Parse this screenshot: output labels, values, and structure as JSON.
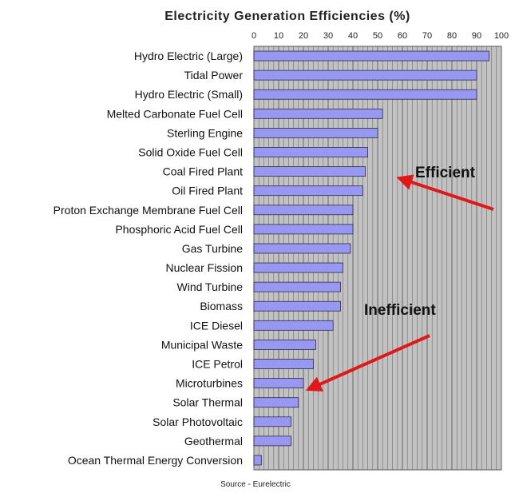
{
  "chart_data": {
    "type": "bar",
    "orientation": "horizontal",
    "title": "Electricity Generation Efficiencies (%)",
    "xlim": [
      0,
      100
    ],
    "xticks": [
      0,
      10,
      20,
      30,
      40,
      50,
      60,
      70,
      80,
      90,
      100
    ],
    "categories": [
      "Hydro Electric (Large)",
      "Tidal Power",
      "Hydro Electric (Small)",
      "Melted Carbonate Fuel Cell",
      "Sterling Engine",
      "Solid Oxide Fuel Cell",
      "Coal Fired Plant",
      "Oil Fired Plant",
      "Proton Exchange Membrane Fuel Cell",
      "Phosphoric Acid Fuel Cell",
      "Gas Turbine",
      "Nuclear Fission",
      "Wind Turbine",
      "Biomass",
      "ICE Diesel",
      "Municipal Waste",
      "ICE Petrol",
      "Microturbines",
      "Solar Thermal",
      "Solar Photovoltaic",
      "Geothermal",
      "Ocean Thermal Energy Conversion"
    ],
    "values": [
      95,
      90,
      90,
      52,
      50,
      46,
      45,
      44,
      40,
      40,
      39,
      36,
      35,
      35,
      32,
      25,
      24,
      20,
      18,
      15,
      15,
      3
    ],
    "grid": true,
    "annotations": [
      {
        "text": "Efficient",
        "arrow_to_category": "Oil Fired Plant"
      },
      {
        "text": "Inefficient",
        "arrow_to_category": "Solar Thermal"
      }
    ],
    "source": "Source - Eurelectric",
    "colors": {
      "bar": "#9898f2",
      "bar_edge": "#2a2a4a",
      "plot_bg": "#c2c2c2",
      "grid": "#6e6e6e",
      "arrow": "#e01818"
    }
  }
}
